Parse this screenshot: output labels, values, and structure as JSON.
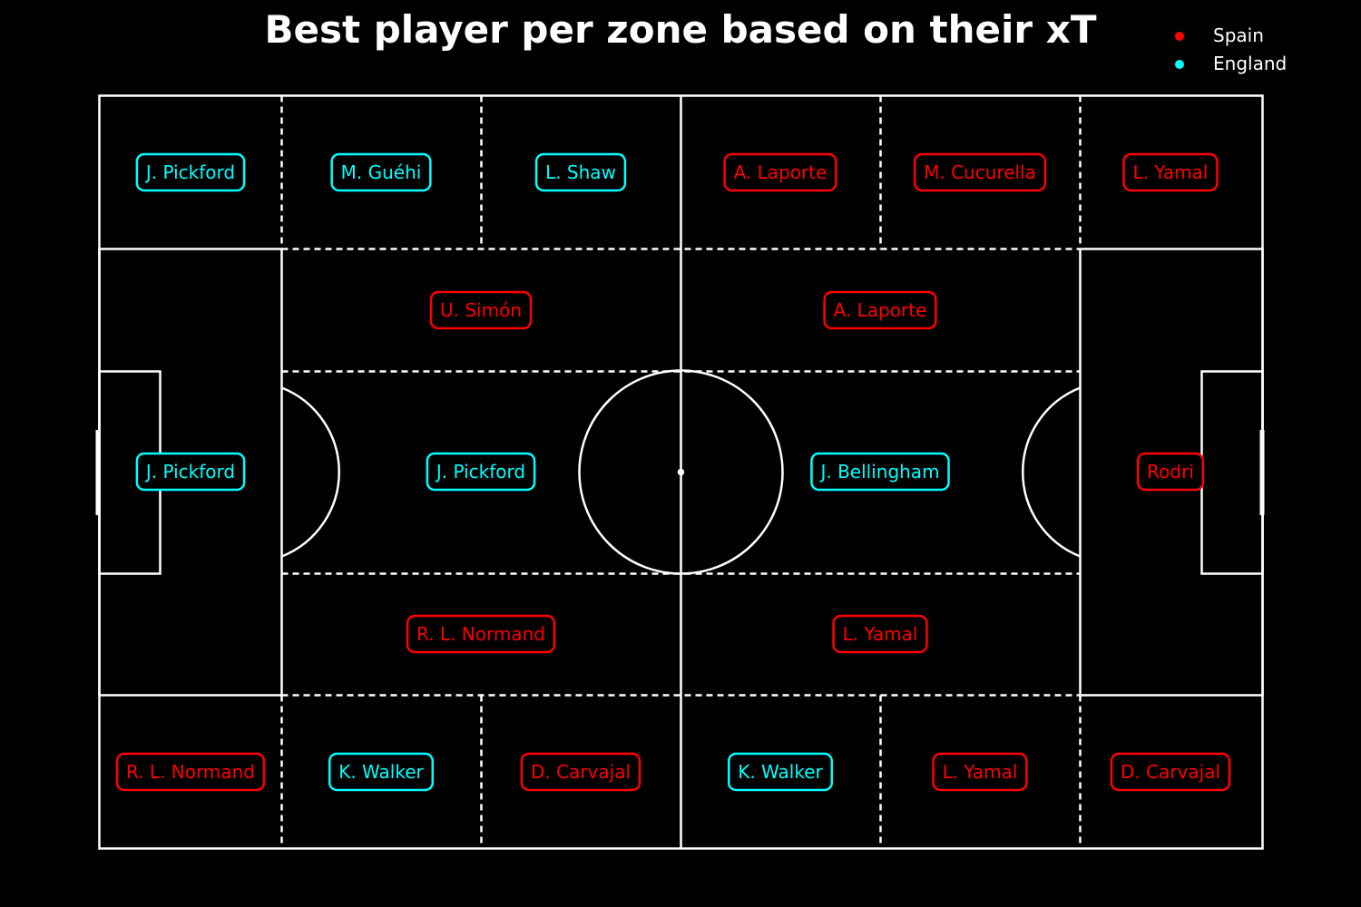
{
  "title": "Best player per zone based on their xT",
  "legend": [
    {
      "name": "Spain",
      "color": "#ff0000"
    },
    {
      "name": "England",
      "color": "#00ffff"
    }
  ],
  "chart_data": {
    "type": "pitch-zone-map",
    "title": "Best player per zone based on their xT",
    "metric": "xT",
    "teams": [
      {
        "name": "Spain",
        "color": "#ff0000"
      },
      {
        "name": "England",
        "color": "#00ffff"
      }
    ],
    "pitch": {
      "length": 120,
      "width": 80
    },
    "zones": [
      {
        "x": 0,
        "y": 0,
        "player": "J. Pickford",
        "team": "England"
      },
      {
        "x": 1,
        "y": 0,
        "player": "M. Guéhi",
        "team": "England"
      },
      {
        "x": 2,
        "y": 0,
        "player": "L. Shaw",
        "team": "England"
      },
      {
        "x": 3,
        "y": 0,
        "player": "A. Laporte",
        "team": "Spain"
      },
      {
        "x": 4,
        "y": 0,
        "player": "M. Cucurella",
        "team": "Spain"
      },
      {
        "x": 5,
        "y": 0,
        "player": "L. Yamal",
        "team": "Spain"
      },
      {
        "x": 1.5,
        "y": 1,
        "player": "U. Simón",
        "team": "Spain"
      },
      {
        "x": 3.5,
        "y": 1,
        "player": "A. Laporte",
        "team": "Spain"
      },
      {
        "x": 0,
        "y": 2,
        "player": "J. Pickford",
        "team": "England"
      },
      {
        "x": 1.5,
        "y": 2,
        "player": "J. Pickford",
        "team": "England"
      },
      {
        "x": 3.5,
        "y": 2,
        "player": "J. Bellingham",
        "team": "England"
      },
      {
        "x": 5,
        "y": 2,
        "player": "Rodri",
        "team": "Spain"
      },
      {
        "x": 1.5,
        "y": 3,
        "player": "R. L. Normand",
        "team": "Spain"
      },
      {
        "x": 3.5,
        "y": 3,
        "player": "L. Yamal",
        "team": "Spain"
      },
      {
        "x": 0,
        "y": 4,
        "player": "R. L. Normand",
        "team": "Spain"
      },
      {
        "x": 1,
        "y": 4,
        "player": "K. Walker",
        "team": "England"
      },
      {
        "x": 2,
        "y": 4,
        "player": "D. Carvajal",
        "team": "Spain"
      },
      {
        "x": 3,
        "y": 4,
        "player": "K. Walker",
        "team": "England"
      },
      {
        "x": 4,
        "y": 4,
        "player": "L. Yamal",
        "team": "Spain"
      },
      {
        "x": 5,
        "y": 4,
        "player": "D. Carvajal",
        "team": "Spain"
      }
    ]
  }
}
